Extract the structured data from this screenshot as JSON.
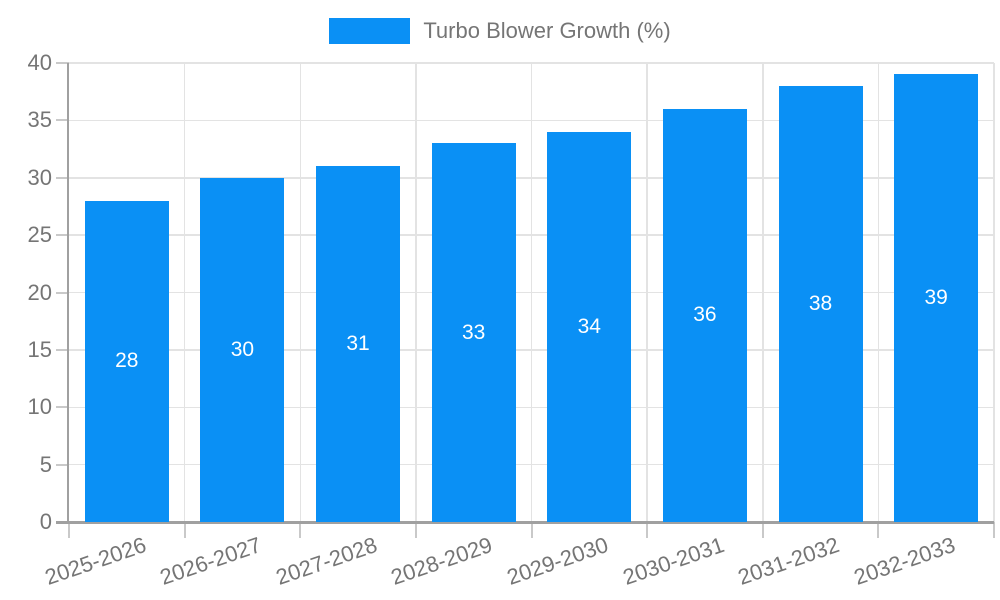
{
  "legend": {
    "label": "Turbo Blower Growth (%)"
  },
  "colors": {
    "bar": "#0a90f5",
    "bar_label_text": "#ffffff",
    "grid_line": "#e3e3e3",
    "tick_line": "#c9c9c9",
    "axis_line": "#a0a0a0",
    "axis_text": "#757575",
    "background": "#ffffff"
  },
  "chart_data": {
    "type": "bar",
    "title": "Turbo Blower Growth (%)",
    "categories": [
      "2025-2026",
      "2026-2027",
      "2027-2028",
      "2028-2029",
      "2029-2030",
      "2030-2031",
      "2031-2032",
      "2032-2033"
    ],
    "values": [
      28,
      30,
      31,
      33,
      34,
      36,
      38,
      39
    ],
    "bar_labels": [
      28,
      30,
      31,
      33,
      34,
      36,
      38,
      39
    ],
    "xlabel": "",
    "ylabel": "",
    "ylim": [
      0,
      40
    ],
    "y_ticks": [
      0,
      5,
      10,
      15,
      20,
      25,
      30,
      35,
      40
    ],
    "grid": true,
    "legend_position": "top",
    "legend_entries": [
      "Turbo Blower Growth (%)"
    ]
  }
}
